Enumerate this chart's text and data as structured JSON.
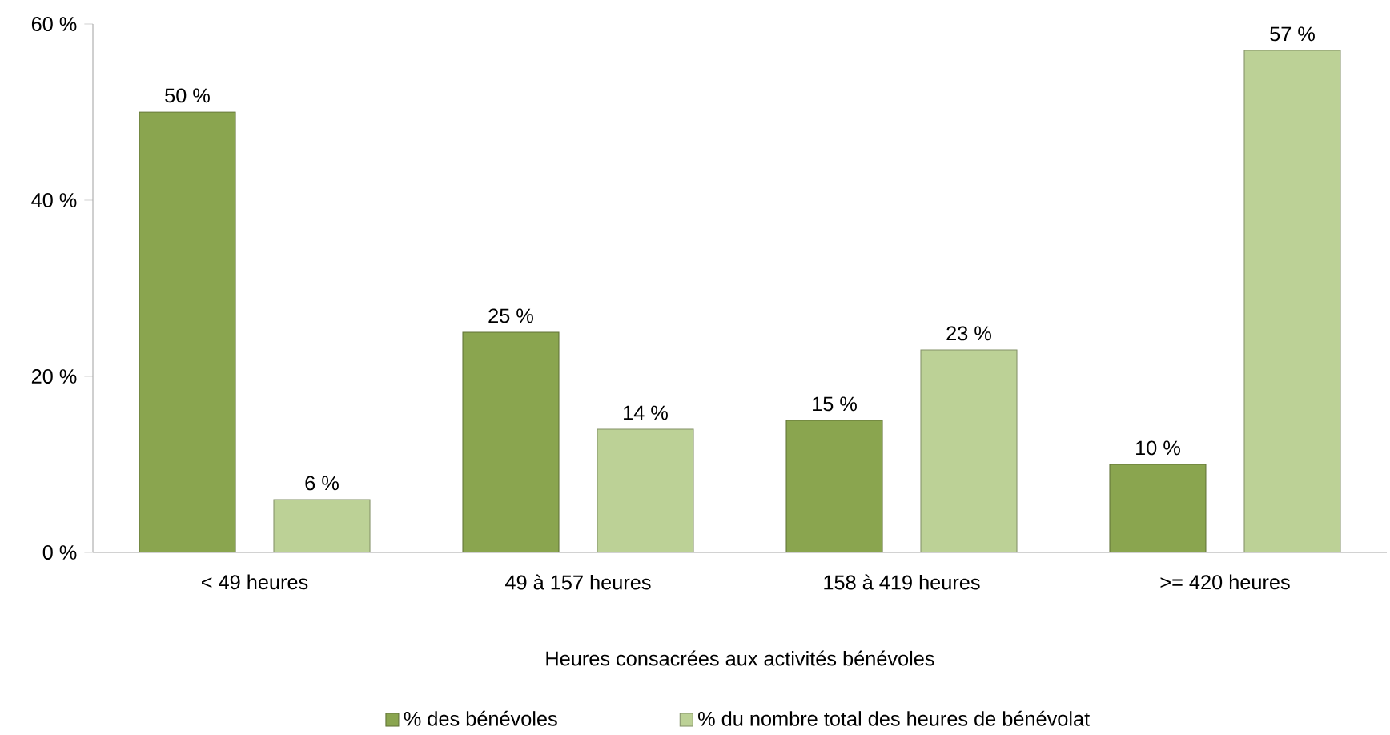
{
  "chart_data": {
    "type": "bar",
    "xlabel": "Heures consacrées aux activités bénévoles",
    "categories": [
      "< 49 heures",
      "49 à 157 heures",
      "158 à 419 heures",
      ">= 420 heures"
    ],
    "series": [
      {
        "name": "% des bénévoles",
        "color": "#8aa54f",
        "values": [
          50,
          25,
          15,
          10
        ],
        "value_labels": [
          "50 %",
          "25 %",
          "15 %",
          "10 %"
        ]
      },
      {
        "name": "% du nombre total des heures de bénévolat",
        "color": "#bcd196",
        "values": [
          6,
          14,
          23,
          57
        ],
        "value_labels": [
          "6 %",
          "14 %",
          "23 %",
          "57 %"
        ]
      }
    ],
    "ylim": [
      0,
      60
    ],
    "yticks": [
      {
        "value": 0,
        "label": "0 %"
      },
      {
        "value": 20,
        "label": "20 %"
      },
      {
        "value": 40,
        "label": "40 %"
      },
      {
        "value": 60,
        "label": "60 %"
      }
    ],
    "grid": false,
    "legend": "bottom"
  }
}
